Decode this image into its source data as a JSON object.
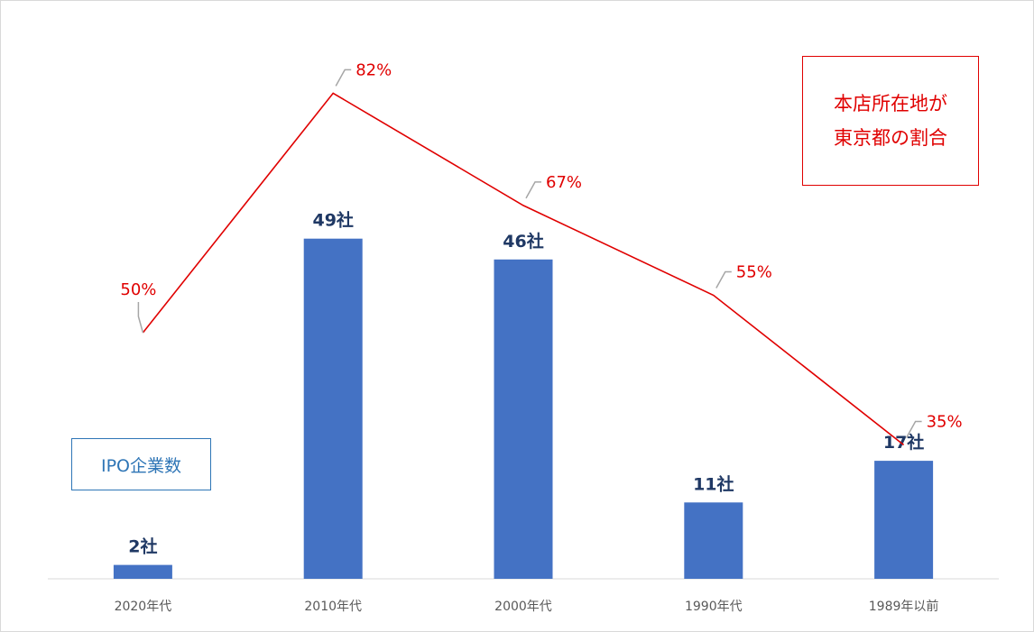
{
  "chart_data": {
    "type": "bar",
    "categories": [
      "2020年代",
      "2010年代",
      "2000年代",
      "1990年代",
      "1989年以前"
    ],
    "series": [
      {
        "name": "IPO企業数",
        "type": "bar",
        "values": [
          2,
          49,
          46,
          11,
          17
        ],
        "labels": [
          "2社",
          "49社",
          "46社",
          "11社",
          "17社"
        ],
        "color": "#4472c4"
      },
      {
        "name": "本店所在地が東京都の割合",
        "type": "line",
        "values": [
          50,
          82,
          67,
          55,
          35
        ],
        "labels": [
          "50%",
          "82%",
          "67%",
          "55%",
          "35%"
        ],
        "color": "#e00000"
      }
    ],
    "legend": {
      "bar": "IPO企業数",
      "line_1": "本店所在地が",
      "line_2": "東京都の割合"
    },
    "grid": false
  }
}
